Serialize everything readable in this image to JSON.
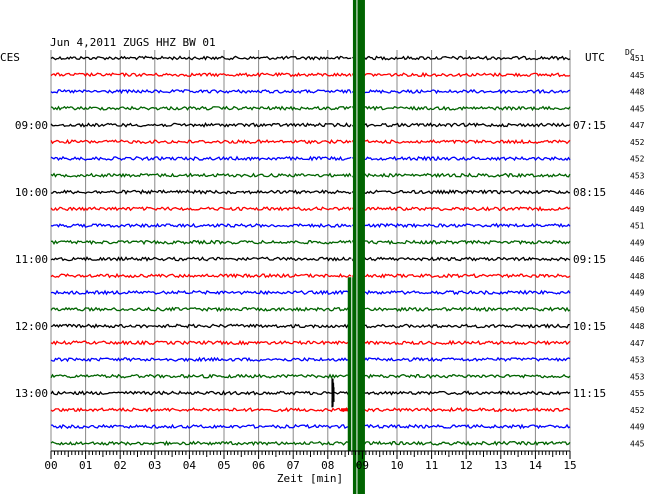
{
  "chart_data": {
    "type": "line",
    "header": "Jun 4,2011   ZUGS HHZ BW 01",
    "left_timezone": "CES",
    "right_timezone": "UTC",
    "dc_label": "DC",
    "xlabel": "Zeit [min]",
    "xlim": [
      0,
      15
    ],
    "x_ticks": [
      "00",
      "01",
      "02",
      "03",
      "04",
      "05",
      "06",
      "07",
      "08",
      "09",
      "10",
      "11",
      "12",
      "13",
      "14",
      "15"
    ],
    "trace_colors": [
      "#000000",
      "#ff0000",
      "#0000ff",
      "#006400"
    ],
    "traces_per_hour": 4,
    "left_hour_labels": [
      "09:00",
      "10:00",
      "11:00",
      "12:00",
      "13:00"
    ],
    "right_hour_labels": [
      "07:15",
      "08:15",
      "09:15",
      "10:15",
      "11:15"
    ],
    "dc_values": [
      "451",
      "445",
      "448",
      "445",
      "447",
      "452",
      "452",
      "453",
      "446",
      "449",
      "451",
      "449",
      "446",
      "448",
      "449",
      "450",
      "448",
      "447",
      "453",
      "453",
      "455",
      "452",
      "449",
      "445"
    ],
    "events": [
      {
        "trace_index": 20,
        "minute": 8.15,
        "amplitude": "medium"
      },
      {
        "trace_index": 15,
        "minute": 8.75,
        "amplitude": "saturated"
      },
      {
        "trace_index": 0,
        "minute": 8.9,
        "amplitude": "saturated"
      }
    ],
    "grid": true
  }
}
